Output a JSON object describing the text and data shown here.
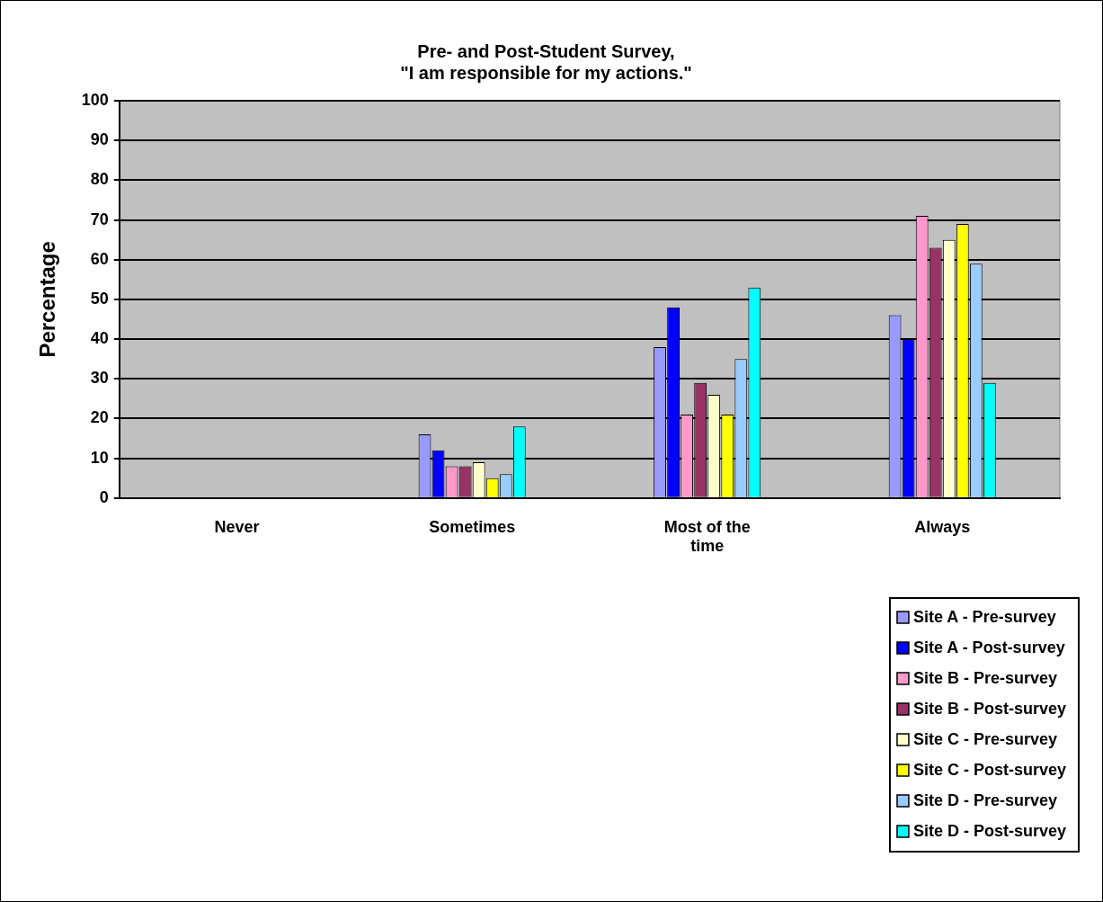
{
  "chart_data": {
    "type": "bar",
    "title": "Pre- and Post-Student Survey,\n\"I am responsible for my actions.\"",
    "ylabel": "Percentage",
    "categories": [
      "Never",
      "Sometimes",
      "Most of the time",
      "Always"
    ],
    "series": [
      {
        "name": "Site A - Pre-survey",
        "color": "#9999ff",
        "values": [
          0,
          16,
          38,
          46
        ]
      },
      {
        "name": "Site A - Post-survey",
        "color": "#0000ff",
        "values": [
          0,
          12,
          48,
          40
        ]
      },
      {
        "name": "Site B - Pre-survey",
        "color": "#ff99cc",
        "values": [
          0,
          8,
          21,
          71
        ]
      },
      {
        "name": "Site B - Post-survey",
        "color": "#993366",
        "values": [
          0,
          8,
          29,
          63
        ]
      },
      {
        "name": "Site C - Pre-survey",
        "color": "#ffffcc",
        "values": [
          0,
          9,
          26,
          65
        ]
      },
      {
        "name": "Site C - Post-survey",
        "color": "#ffff00",
        "values": [
          0,
          5,
          21,
          69
        ]
      },
      {
        "name": "Site D - Pre-survey",
        "color": "#99ccff",
        "values": [
          0,
          6,
          35,
          59
        ]
      },
      {
        "name": "Site D - Post-survey",
        "color": "#00ffff",
        "values": [
          0,
          18,
          53,
          29
        ]
      }
    ],
    "ylim": [
      0,
      100
    ],
    "yticks": [
      0,
      10,
      20,
      30,
      40,
      50,
      60,
      70,
      80,
      90,
      100
    ],
    "grid": "y",
    "legend": "bottom right"
  }
}
